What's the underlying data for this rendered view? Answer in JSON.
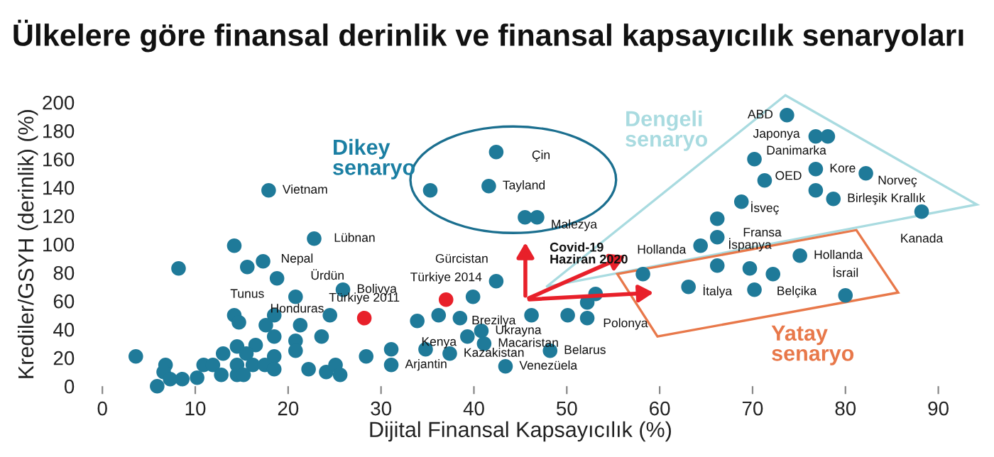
{
  "chart_data": {
    "type": "scatter",
    "title": "Ülkelere göre finansal derinlik ve finansal kapsayıcılık senaryoları",
    "xlabel": "Dijital Finansal Kapsayıcılık (%)",
    "ylabel": "Krediler/GSYH (derinlik) (%)",
    "xlim": [
      0,
      90
    ],
    "ylim": [
      0,
      200
    ],
    "xticks": [
      0,
      10,
      20,
      30,
      40,
      50,
      60,
      70,
      80,
      90
    ],
    "yticks": [
      0,
      20,
      40,
      60,
      80,
      100,
      120,
      140,
      160,
      180,
      200
    ],
    "marker": "circle",
    "grid": false,
    "legend": false,
    "series": [
      {
        "color": "#1f7a99",
        "x": [
          17.9,
          22.8,
          14.2,
          8.2,
          15.6,
          17.3,
          18.8,
          20.8,
          25.9,
          24.5,
          14.2,
          14.7,
          18.5,
          21.3,
          17.6,
          23.6,
          18.5,
          20.8,
          20.8,
          14.5,
          16.5,
          3.6,
          13.0,
          15.5,
          18.5,
          28.4,
          31.1,
          31.1,
          6.8,
          10.9,
          11.9,
          14.5,
          16.2,
          17.5,
          6.6,
          12.8,
          14.5,
          15.2,
          18.5,
          22.2,
          24.1,
          25.1,
          25.6,
          7.3,
          8.6,
          10.2,
          5.9,
          42.4,
          41.6,
          35.3,
          45.5,
          46.8,
          42.4,
          39.9,
          36.2,
          38.5,
          33.9,
          46.2,
          40.8,
          39.3,
          41.1,
          34.8,
          37.4,
          43.4,
          48.2,
          50.1,
          52.2,
          52.2,
          53.1,
          58.2,
          63.1,
          73.7,
          76.8,
          78.1,
          70.2,
          71.3,
          76.8,
          82.2,
          76.8,
          78.7,
          68.8,
          88.2,
          66.2,
          66.2,
          64.4,
          66.2,
          69.7,
          72.2,
          70.2,
          75.1,
          80.0
        ],
        "values": [
          138,
          104,
          99,
          83,
          84,
          88,
          76,
          63,
          68,
          50,
          50,
          45,
          50,
          43,
          43,
          35,
          35,
          32,
          25,
          28,
          29,
          21,
          23,
          23,
          21,
          21,
          26,
          15,
          15,
          15,
          15,
          15,
          15,
          15,
          10,
          8,
          8,
          8,
          12,
          12,
          10,
          15,
          8,
          5,
          5,
          6,
          0,
          165,
          141,
          138,
          119,
          119,
          74,
          63,
          50,
          48,
          46,
          50,
          39,
          35,
          30,
          26,
          23,
          14,
          25,
          50,
          48,
          59,
          65,
          79,
          70,
          191,
          176,
          176,
          160,
          145,
          153,
          150,
          138,
          132,
          130,
          123,
          118,
          105,
          99,
          85,
          83,
          79,
          68,
          92,
          64
        ]
      },
      {
        "color": "#e8202a",
        "x": [
          28.2,
          37.0
        ],
        "values": [
          48,
          61
        ]
      }
    ],
    "annotations": [
      "Dikey\nsenaryo",
      "Dengeli\nsenaryo",
      "Yatay\nsenaryo",
      "Covid-19\nHaziran 2020",
      {
        "text": "Vietnam",
        "x": 17.9,
        "y": 138
      },
      {
        "text": "Lübnan",
        "x": 22.8,
        "y": 104
      },
      {
        "text": "Nepal",
        "x": 17.3,
        "y": 88
      },
      {
        "text": "Ürdün",
        "x": 18.8,
        "y": 76
      },
      {
        "text": "Tunus",
        "x": 15.6,
        "y": 84
      },
      {
        "text": "Bolivya",
        "x": 25.9,
        "y": 68
      },
      {
        "text": "Türkiye 2011",
        "x": 28.2,
        "y": 48
      },
      {
        "text": "Honduras",
        "x": 24.5,
        "y": 50
      },
      {
        "text": "Gürcistan",
        "x": 42.4,
        "y": 74
      },
      {
        "text": "Türkiye 2014",
        "x": 37.0,
        "y": 61
      },
      {
        "text": "Brezilya",
        "x": 46.2,
        "y": 50
      },
      {
        "text": "Kenya",
        "x": 33.9,
        "y": 46
      },
      {
        "text": "Ukrayna",
        "x": 40.8,
        "y": 39
      },
      {
        "text": "Macaristan",
        "x": 41.1,
        "y": 30
      },
      {
        "text": "Kazakistan",
        "x": 37.4,
        "y": 23
      },
      {
        "text": "Arjantin",
        "x": 31.1,
        "y": 15
      },
      {
        "text": "Venezüela",
        "x": 43.4,
        "y": 14
      },
      {
        "text": "Belarus",
        "x": 48.2,
        "y": 25
      },
      {
        "text": "Polonya",
        "x": 52.2,
        "y": 48
      },
      {
        "text": "Çin",
        "x": 42.4,
        "y": 165
      },
      {
        "text": "Tayland",
        "x": 41.6,
        "y": 141
      },
      {
        "text": "Malezya",
        "x": 46.8,
        "y": 119
      },
      {
        "text": "Hollanda",
        "x": 58.2,
        "y": 79
      },
      {
        "text": "ABD",
        "x": 73.7,
        "y": 191
      },
      {
        "text": "Japonya",
        "x": 76.8,
        "y": 176
      },
      {
        "text": "Danimarka",
        "x": 70.2,
        "y": 160
      },
      {
        "text": "Kore",
        "x": 76.8,
        "y": 153
      },
      {
        "text": "OED",
        "x": 76.8,
        "y": 138
      },
      {
        "text": "Norveç",
        "x": 82.2,
        "y": 150
      },
      {
        "text": "Birleşik Krallık",
        "x": 78.7,
        "y": 132
      },
      {
        "text": "İsveç",
        "x": 71.3,
        "y": 145
      },
      {
        "text": "Kanada",
        "x": 88.2,
        "y": 123
      },
      {
        "text": "Fransa",
        "x": 66.2,
        "y": 105
      },
      {
        "text": "İspanya",
        "x": 69.7,
        "y": 83
      },
      {
        "text": "Hollanda",
        "x": 75.1,
        "y": 92
      },
      {
        "text": "İtalya",
        "x": 66.2,
        "y": 85
      },
      {
        "text": "Belçika",
        "x": 72.2,
        "y": 79
      },
      {
        "text": "İsrail",
        "x": 80.0,
        "y": 64
      }
    ]
  }
}
